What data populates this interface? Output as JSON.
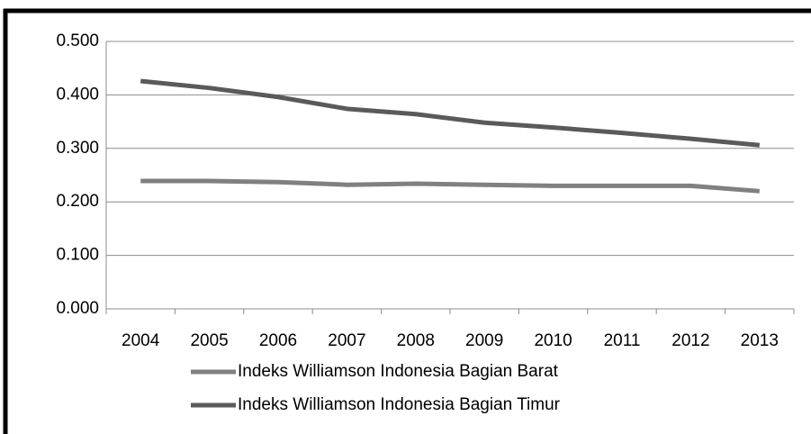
{
  "chart_data": {
    "type": "line",
    "categories": [
      "2004",
      "2005",
      "2006",
      "2007",
      "2008",
      "2009",
      "2010",
      "2011",
      "2012",
      "2013"
    ],
    "series": [
      {
        "name": "Indeks Williamson Indonesia Bagian Barat",
        "color": "#808080",
        "values": [
          0.239,
          0.239,
          0.237,
          0.232,
          0.234,
          0.232,
          0.23,
          0.23,
          0.23,
          0.22
        ]
      },
      {
        "name": "Indeks Williamson Indonesia Bagian Timur",
        "color": "#5a5a5a",
        "values": [
          0.426,
          0.413,
          0.396,
          0.374,
          0.364,
          0.348,
          0.339,
          0.329,
          0.318,
          0.306
        ]
      }
    ],
    "ylim": [
      0,
      0.5
    ],
    "yticks": [
      {
        "value": 0,
        "label": "0.000"
      },
      {
        "value": 0.1,
        "label": "0.100"
      },
      {
        "value": 0.2,
        "label": "0.200"
      },
      {
        "value": 0.3,
        "label": "0.300"
      },
      {
        "value": 0.4,
        "label": "0.400"
      },
      {
        "value": 0.5,
        "label": "0.500"
      }
    ],
    "grid": true,
    "legend": "bottom"
  }
}
